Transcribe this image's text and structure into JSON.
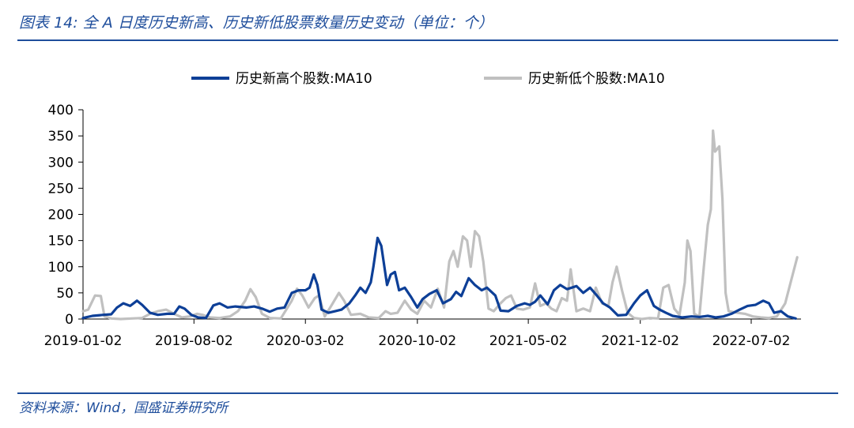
{
  "figure": {
    "title": "图表 14:  全 A 日度历史新高、历史新低股票数量历史变动（单位：个）",
    "source": "资料来源：Wind，国盛证券研究所"
  },
  "chart_data": {
    "type": "line",
    "title": "",
    "xlabel": "",
    "ylabel": "",
    "ylim": [
      0,
      400
    ],
    "yticks": [
      "0",
      "50",
      "100",
      "150",
      "200",
      "250",
      "300",
      "350",
      "400"
    ],
    "xticks": [
      "2019-01-02",
      "2019-08-02",
      "2020-03-02",
      "2020-10-02",
      "2021-05-02",
      "2021-12-02",
      "2022-07-02"
    ],
    "xlim": [
      "2019-01-02",
      "2022-09-30"
    ],
    "grid": false,
    "legend": "top",
    "series": [
      {
        "name": "历史新高个股数:MA10",
        "color": "#0d3f97",
        "points": [
          [
            "2019-01-02",
            2
          ],
          [
            "2019-01-20",
            6
          ],
          [
            "2019-02-10",
            8
          ],
          [
            "2019-02-25",
            9
          ],
          [
            "2019-03-08",
            22
          ],
          [
            "2019-03-20",
            30
          ],
          [
            "2019-04-02",
            25
          ],
          [
            "2019-04-15",
            35
          ],
          [
            "2019-04-25",
            27
          ],
          [
            "2019-05-10",
            12
          ],
          [
            "2019-05-25",
            8
          ],
          [
            "2019-06-12",
            10
          ],
          [
            "2019-06-25",
            10
          ],
          [
            "2019-07-05",
            24
          ],
          [
            "2019-07-15",
            20
          ],
          [
            "2019-07-28",
            8
          ],
          [
            "2019-08-10",
            3
          ],
          [
            "2019-08-25",
            2
          ],
          [
            "2019-09-08",
            26
          ],
          [
            "2019-09-20",
            30
          ],
          [
            "2019-10-05",
            22
          ],
          [
            "2019-10-20",
            24
          ],
          [
            "2019-11-10",
            22
          ],
          [
            "2019-11-25",
            24
          ],
          [
            "2019-12-10",
            20
          ],
          [
            "2019-12-25",
            14
          ],
          [
            "2020-01-08",
            20
          ],
          [
            "2020-01-22",
            22
          ],
          [
            "2020-02-05",
            50
          ],
          [
            "2020-02-18",
            55
          ],
          [
            "2020-03-02",
            55
          ],
          [
            "2020-03-10",
            60
          ],
          [
            "2020-03-18",
            85
          ],
          [
            "2020-03-25",
            65
          ],
          [
            "2020-04-02",
            18
          ],
          [
            "2020-04-15",
            12
          ],
          [
            "2020-04-28",
            15
          ],
          [
            "2020-05-10",
            18
          ],
          [
            "2020-05-25",
            30
          ],
          [
            "2020-06-05",
            45
          ],
          [
            "2020-06-15",
            60
          ],
          [
            "2020-06-25",
            50
          ],
          [
            "2020-07-05",
            70
          ],
          [
            "2020-07-10",
            100
          ],
          [
            "2020-07-18",
            155
          ],
          [
            "2020-07-25",
            140
          ],
          [
            "2020-08-05",
            65
          ],
          [
            "2020-08-12",
            85
          ],
          [
            "2020-08-20",
            90
          ],
          [
            "2020-08-28",
            55
          ],
          [
            "2020-09-08",
            60
          ],
          [
            "2020-09-20",
            42
          ],
          [
            "2020-10-02",
            22
          ],
          [
            "2020-10-12",
            38
          ],
          [
            "2020-10-25",
            48
          ],
          [
            "2020-11-08",
            55
          ],
          [
            "2020-11-20",
            30
          ],
          [
            "2020-12-05",
            38
          ],
          [
            "2020-12-15",
            52
          ],
          [
            "2020-12-25",
            44
          ],
          [
            "2021-01-08",
            78
          ],
          [
            "2021-01-20",
            65
          ],
          [
            "2021-02-02",
            55
          ],
          [
            "2021-02-12",
            60
          ],
          [
            "2021-02-28",
            45
          ],
          [
            "2021-03-10",
            16
          ],
          [
            "2021-03-25",
            15
          ],
          [
            "2021-04-10",
            25
          ],
          [
            "2021-04-25",
            30
          ],
          [
            "2021-05-05",
            27
          ],
          [
            "2021-05-15",
            33
          ],
          [
            "2021-05-25",
            45
          ],
          [
            "2021-06-08",
            28
          ],
          [
            "2021-06-20",
            55
          ],
          [
            "2021-07-02",
            65
          ],
          [
            "2021-07-15",
            57
          ],
          [
            "2021-08-02",
            63
          ],
          [
            "2021-08-15",
            50
          ],
          [
            "2021-08-28",
            60
          ],
          [
            "2021-09-10",
            45
          ],
          [
            "2021-09-22",
            30
          ],
          [
            "2021-10-05",
            22
          ],
          [
            "2021-10-20",
            7
          ],
          [
            "2021-11-05",
            8
          ],
          [
            "2021-11-20",
            30
          ],
          [
            "2021-12-02",
            45
          ],
          [
            "2021-12-15",
            55
          ],
          [
            "2021-12-28",
            25
          ],
          [
            "2022-01-08",
            18
          ],
          [
            "2022-01-20",
            12
          ],
          [
            "2022-02-02",
            6
          ],
          [
            "2022-02-20",
            3
          ],
          [
            "2022-03-10",
            5
          ],
          [
            "2022-03-25",
            4
          ],
          [
            "2022-04-10",
            6
          ],
          [
            "2022-04-25",
            3
          ],
          [
            "2022-05-10",
            5
          ],
          [
            "2022-05-25",
            10
          ],
          [
            "2022-06-10",
            18
          ],
          [
            "2022-06-25",
            25
          ],
          [
            "2022-07-10",
            27
          ],
          [
            "2022-07-25",
            35
          ],
          [
            "2022-08-05",
            30
          ],
          [
            "2022-08-15",
            12
          ],
          [
            "2022-08-28",
            15
          ],
          [
            "2022-09-10",
            5
          ],
          [
            "2022-09-25",
            1
          ]
        ]
      },
      {
        "name": "历史新低个股数:MA10",
        "color": "#c0c0c0",
        "points": [
          [
            "2019-01-02",
            15
          ],
          [
            "2019-01-12",
            18
          ],
          [
            "2019-01-25",
            45
          ],
          [
            "2019-02-05",
            44
          ],
          [
            "2019-02-12",
            5
          ],
          [
            "2019-02-25",
            1
          ],
          [
            "2019-03-15",
            0
          ],
          [
            "2019-04-05",
            1
          ],
          [
            "2019-04-25",
            2
          ],
          [
            "2019-05-10",
            10
          ],
          [
            "2019-05-25",
            15
          ],
          [
            "2019-06-10",
            18
          ],
          [
            "2019-06-25",
            10
          ],
          [
            "2019-07-10",
            3
          ],
          [
            "2019-07-25",
            5
          ],
          [
            "2019-08-08",
            10
          ],
          [
            "2019-08-18",
            8
          ],
          [
            "2019-09-02",
            3
          ],
          [
            "2019-09-20",
            2
          ],
          [
            "2019-10-10",
            5
          ],
          [
            "2019-10-25",
            15
          ],
          [
            "2019-11-08",
            35
          ],
          [
            "2019-11-18",
            57
          ],
          [
            "2019-11-28",
            42
          ],
          [
            "2019-12-10",
            10
          ],
          [
            "2019-12-25",
            2
          ],
          [
            "2020-01-15",
            1
          ],
          [
            "2020-02-05",
            35
          ],
          [
            "2020-02-15",
            58
          ],
          [
            "2020-02-25",
            45
          ],
          [
            "2020-03-08",
            22
          ],
          [
            "2020-03-20",
            40
          ],
          [
            "2020-03-28",
            45
          ],
          [
            "2020-04-08",
            5
          ],
          [
            "2020-04-22",
            28
          ],
          [
            "2020-05-05",
            50
          ],
          [
            "2020-05-15",
            35
          ],
          [
            "2020-05-28",
            8
          ],
          [
            "2020-06-15",
            10
          ],
          [
            "2020-07-01",
            3
          ],
          [
            "2020-07-20",
            2
          ],
          [
            "2020-08-02",
            15
          ],
          [
            "2020-08-12",
            10
          ],
          [
            "2020-08-25",
            12
          ],
          [
            "2020-09-08",
            35
          ],
          [
            "2020-09-20",
            18
          ],
          [
            "2020-10-02",
            10
          ],
          [
            "2020-10-15",
            35
          ],
          [
            "2020-10-28",
            22
          ],
          [
            "2020-11-10",
            58
          ],
          [
            "2020-11-22",
            22
          ],
          [
            "2020-12-02",
            110
          ],
          [
            "2020-12-10",
            130
          ],
          [
            "2020-12-18",
            100
          ],
          [
            "2020-12-28",
            158
          ],
          [
            "2021-01-05",
            150
          ],
          [
            "2021-01-12",
            100
          ],
          [
            "2021-01-20",
            168
          ],
          [
            "2021-01-28",
            158
          ],
          [
            "2021-02-05",
            110
          ],
          [
            "2021-02-15",
            20
          ],
          [
            "2021-02-25",
            15
          ],
          [
            "2021-03-10",
            30
          ],
          [
            "2021-03-20",
            40
          ],
          [
            "2021-03-30",
            45
          ],
          [
            "2021-04-10",
            20
          ],
          [
            "2021-04-22",
            18
          ],
          [
            "2021-05-05",
            22
          ],
          [
            "2021-05-15",
            68
          ],
          [
            "2021-05-25",
            25
          ],
          [
            "2021-06-05",
            30
          ],
          [
            "2021-06-15",
            20
          ],
          [
            "2021-06-25",
            15
          ],
          [
            "2021-07-05",
            40
          ],
          [
            "2021-07-15",
            35
          ],
          [
            "2021-07-22",
            95
          ],
          [
            "2021-08-02",
            15
          ],
          [
            "2021-08-15",
            20
          ],
          [
            "2021-08-28",
            15
          ],
          [
            "2021-09-08",
            60
          ],
          [
            "2021-09-20",
            30
          ],
          [
            "2021-10-02",
            25
          ],
          [
            "2021-10-10",
            70
          ],
          [
            "2021-10-18",
            100
          ],
          [
            "2021-10-28",
            55
          ],
          [
            "2021-11-08",
            12
          ],
          [
            "2021-11-20",
            2
          ],
          [
            "2021-12-05",
            0
          ],
          [
            "2021-12-20",
            2
          ],
          [
            "2022-01-05",
            1
          ],
          [
            "2022-01-15",
            60
          ],
          [
            "2022-01-25",
            65
          ],
          [
            "2022-02-05",
            20
          ],
          [
            "2022-02-15",
            8
          ],
          [
            "2022-02-25",
            70
          ],
          [
            "2022-03-02",
            150
          ],
          [
            "2022-03-08",
            130
          ],
          [
            "2022-03-15",
            10
          ],
          [
            "2022-03-25",
            5
          ],
          [
            "2022-04-02",
            95
          ],
          [
            "2022-04-10",
            180
          ],
          [
            "2022-04-16",
            210
          ],
          [
            "2022-04-20",
            360
          ],
          [
            "2022-04-24",
            320
          ],
          [
            "2022-05-02",
            330
          ],
          [
            "2022-05-08",
            230
          ],
          [
            "2022-05-14",
            50
          ],
          [
            "2022-05-20",
            15
          ],
          [
            "2022-06-05",
            12
          ],
          [
            "2022-06-20",
            10
          ],
          [
            "2022-07-05",
            5
          ],
          [
            "2022-07-20",
            3
          ],
          [
            "2022-08-05",
            2
          ],
          [
            "2022-08-20",
            5
          ],
          [
            "2022-09-05",
            30
          ],
          [
            "2022-09-18",
            80
          ],
          [
            "2022-09-28",
            118
          ]
        ]
      }
    ]
  }
}
